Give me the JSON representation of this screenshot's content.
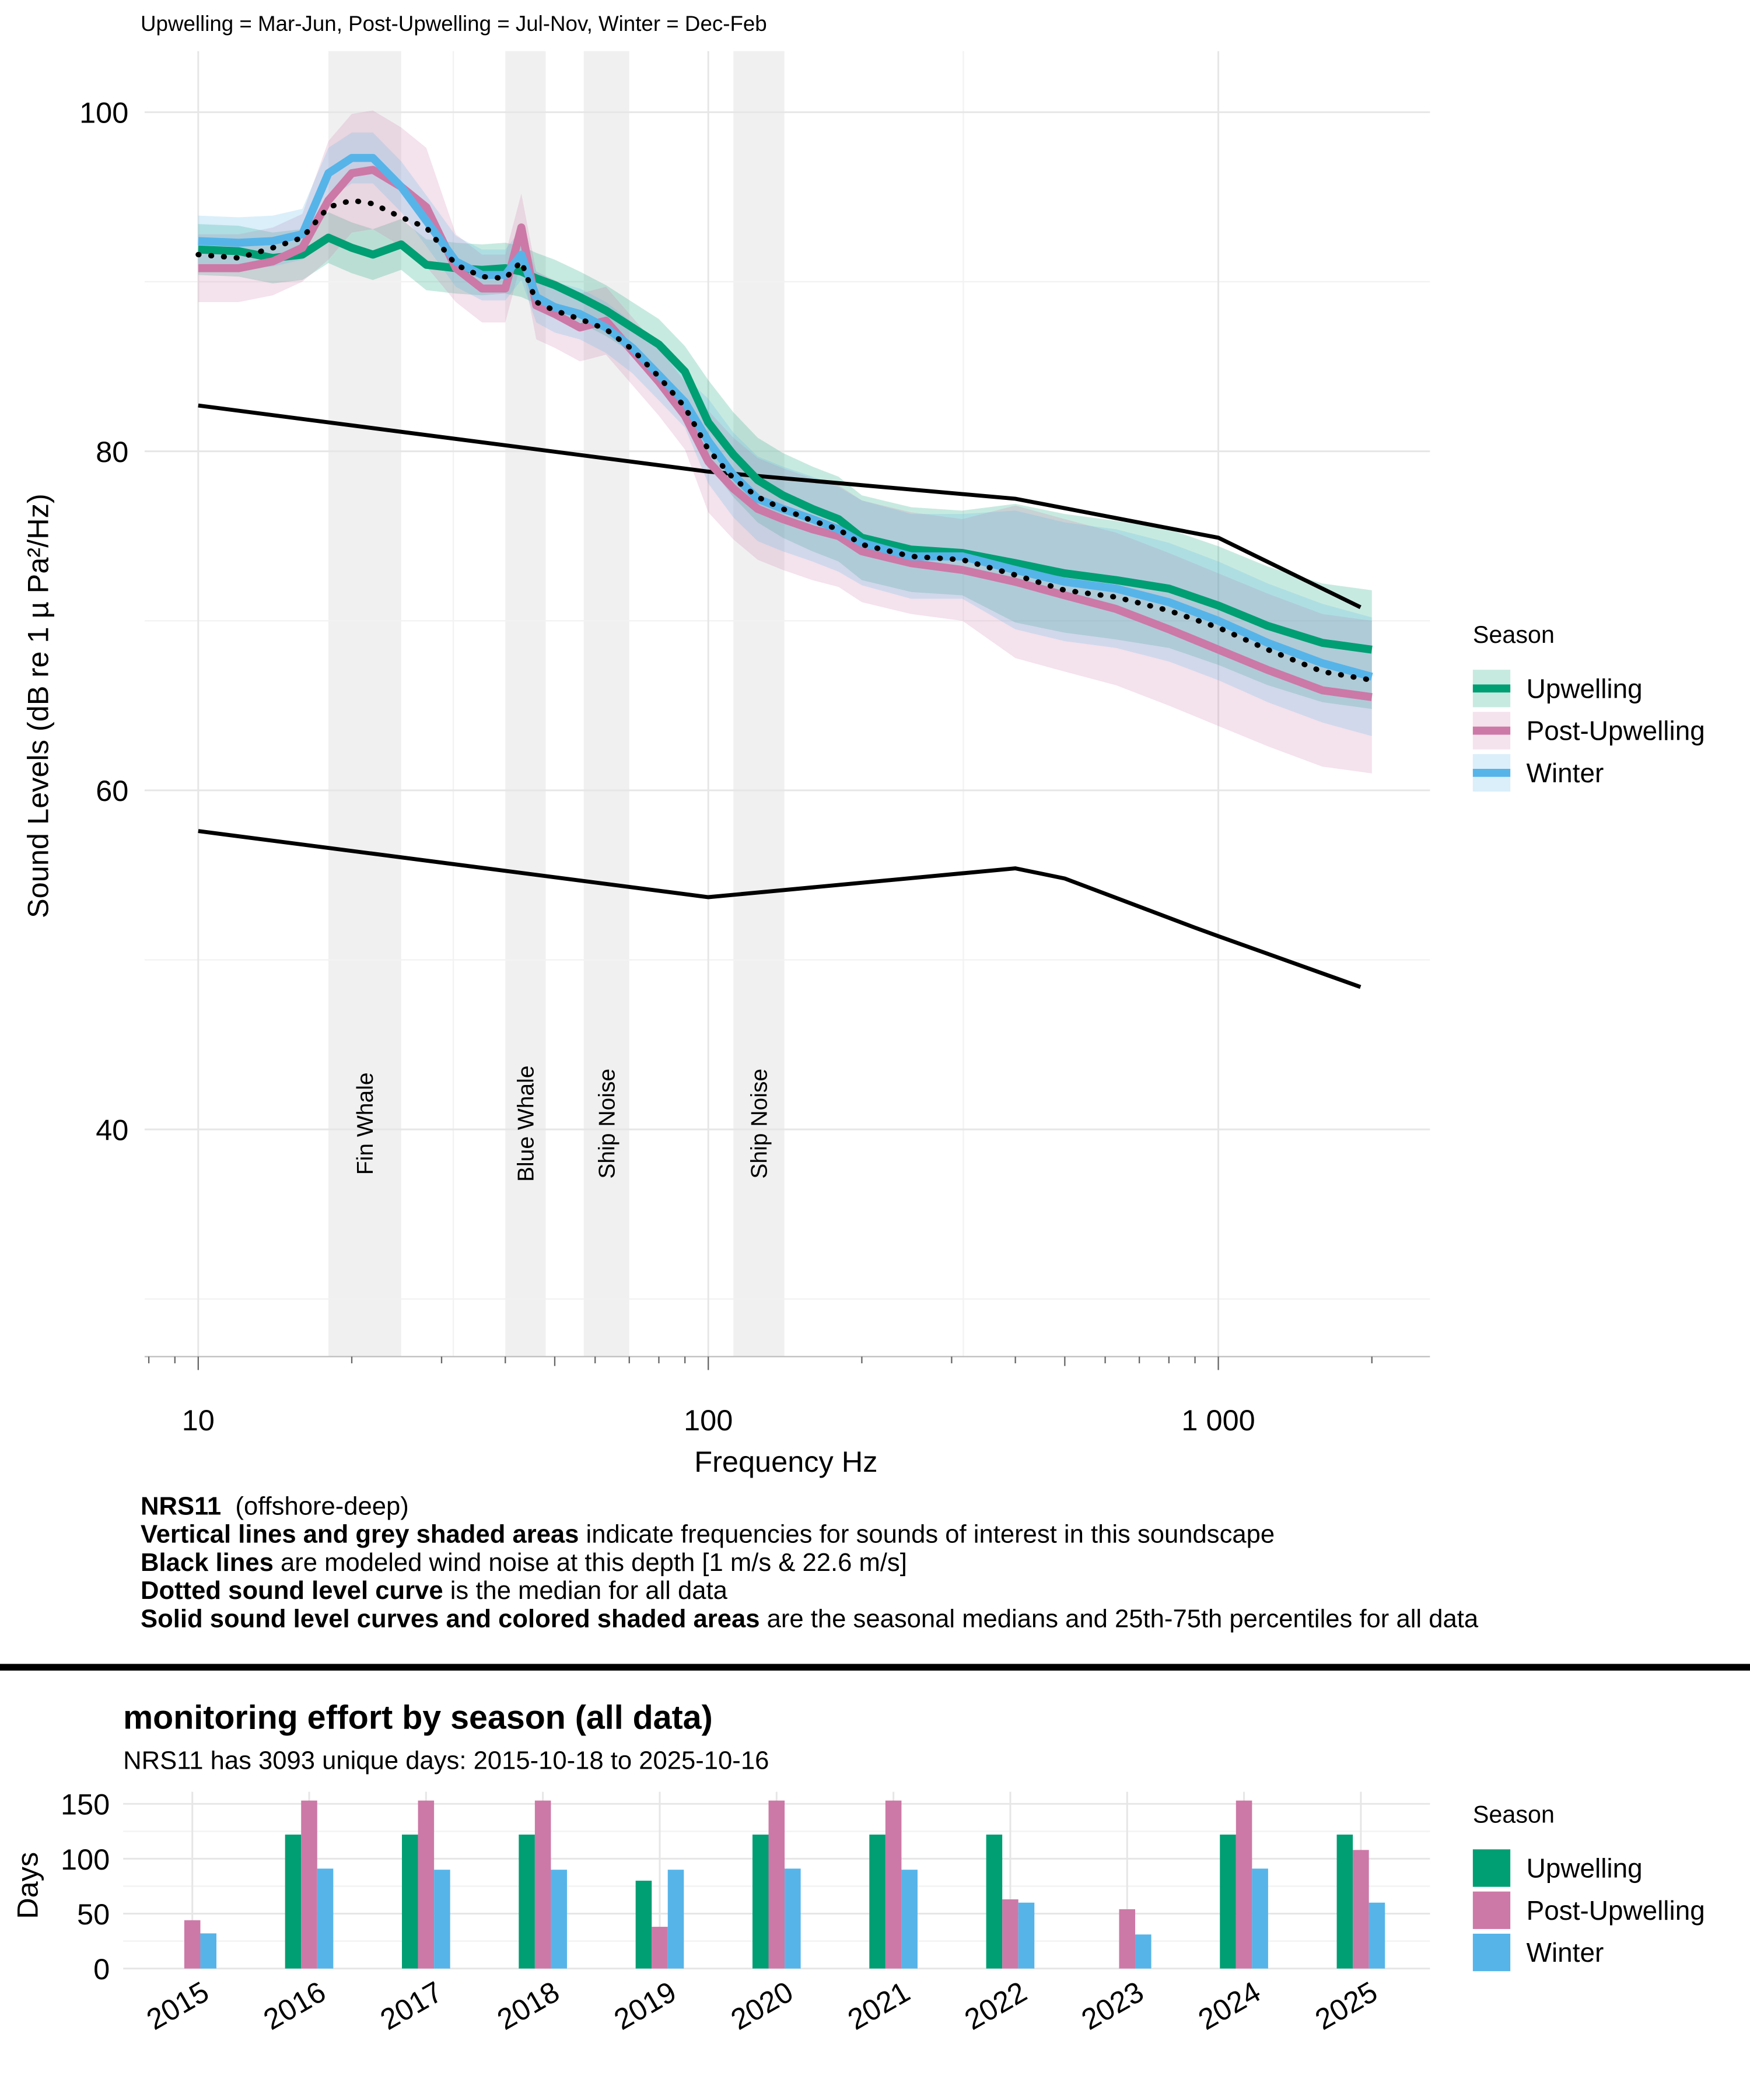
{
  "chart_data": [
    {
      "type": "line",
      "subtitle": "Upwelling = Mar-Jun, Post-Upwelling = Jul-Nov, Winter = Dec-Feb",
      "x_label": "Frequency Hz",
      "y_label": "Sound Levels (dB re 1 µ Pa²/Hz)",
      "log_x": true,
      "xlim": [
        7.85,
        2600
      ],
      "xticks": [
        10,
        100,
        {
          "value": 1000,
          "label": "1 000"
        }
      ],
      "ylim": [
        26.6,
        103.6
      ],
      "yticks": [
        40,
        60,
        80,
        100
      ],
      "grid": true,
      "legend_title": "Season",
      "legend": "right",
      "x": [
        10,
        12,
        14,
        16,
        18,
        20,
        22,
        25,
        28,
        32,
        36,
        40,
        43,
        46,
        50,
        56,
        63,
        71,
        80,
        90,
        100,
        112,
        125,
        140,
        160,
        180,
        200,
        250,
        315,
        400,
        500,
        630,
        800,
        1000,
        1250,
        1600,
        2000
      ],
      "series": [
        {
          "name": "Upwelling",
          "color": "#009E73",
          "values": [
            91.9,
            91.8,
            91.4,
            91.6,
            92.6,
            92.0,
            91.6,
            92.2,
            91.0,
            90.8,
            90.7,
            90.8,
            90.6,
            90.2,
            89.8,
            89.1,
            88.3,
            87.3,
            86.3,
            84.7,
            81.7,
            79.8,
            78.3,
            77.4,
            76.6,
            76.0,
            74.9,
            74.2,
            74.0,
            73.4,
            72.8,
            72.4,
            71.9,
            70.9,
            69.7,
            68.7,
            68.3
          ],
          "upper": [
            93.4,
            93.3,
            92.9,
            93.1,
            94.1,
            93.5,
            93.1,
            93.7,
            92.5,
            92.3,
            92.2,
            92.3,
            92.1,
            91.7,
            91.3,
            90.6,
            89.8,
            88.8,
            87.8,
            86.2,
            84.2,
            82.3,
            80.8,
            79.9,
            79.1,
            78.5,
            77.4,
            76.7,
            76.5,
            76.9,
            76.3,
            75.9,
            75.4,
            74.4,
            73.2,
            72.2,
            71.8
          ],
          "lower": [
            90.4,
            90.3,
            89.9,
            90.1,
            91.1,
            90.5,
            90.1,
            90.7,
            89.5,
            89.3,
            89.2,
            89.3,
            89.1,
            88.7,
            88.3,
            87.6,
            86.8,
            85.8,
            84.8,
            83.2,
            79.2,
            77.3,
            75.8,
            74.9,
            74.1,
            73.5,
            72.4,
            71.7,
            71.5,
            69.9,
            69.3,
            68.9,
            68.4,
            67.4,
            66.2,
            65.2,
            64.8
          ]
        },
        {
          "name": "Post-Upwelling",
          "color": "#CC79A7",
          "values": [
            90.8,
            90.8,
            91.2,
            92.0,
            94.8,
            96.4,
            96.6,
            95.6,
            94.4,
            90.8,
            89.6,
            89.6,
            93.2,
            88.6,
            88.1,
            87.3,
            87.7,
            85.9,
            84.1,
            82.1,
            79.4,
            77.8,
            76.6,
            76.0,
            75.4,
            75.0,
            74.1,
            73.4,
            73.0,
            72.3,
            71.5,
            70.7,
            69.5,
            68.3,
            67.1,
            65.9,
            65.5
          ],
          "upper": [
            92.8,
            92.8,
            93.2,
            94.0,
            98.3,
            99.9,
            100.1,
            99.1,
            97.9,
            92.8,
            91.6,
            91.6,
            95.2,
            90.6,
            90.1,
            89.3,
            89.7,
            87.9,
            86.1,
            84.1,
            82.4,
            80.8,
            79.6,
            79.0,
            78.4,
            78.0,
            77.1,
            76.4,
            76.0,
            76.8,
            76.0,
            75.2,
            74.0,
            72.8,
            71.6,
            70.4,
            70.0
          ],
          "lower": [
            88.8,
            88.8,
            89.2,
            90.0,
            91.3,
            92.9,
            93.1,
            92.1,
            90.9,
            88.8,
            87.6,
            87.6,
            91.2,
            86.6,
            86.1,
            85.3,
            85.7,
            83.9,
            82.1,
            80.1,
            76.4,
            74.8,
            73.6,
            73.0,
            72.4,
            72.0,
            71.1,
            70.4,
            70.0,
            67.8,
            67.0,
            66.2,
            65.0,
            63.8,
            62.6,
            61.4,
            61.0
          ]
        },
        {
          "name": "Winter",
          "color": "#56B4E9",
          "values": [
            92.4,
            92.3,
            92.4,
            92.8,
            96.4,
            97.3,
            97.3,
            95.6,
            93.6,
            91.2,
            90.4,
            90.4,
            91.6,
            89.1,
            88.5,
            88.1,
            87.3,
            86.1,
            84.5,
            82.9,
            80.6,
            78.6,
            77.2,
            76.6,
            76.0,
            75.4,
            74.6,
            73.8,
            73.8,
            73.0,
            72.3,
            71.9,
            71.1,
            70.0,
            68.7,
            67.5,
            66.7
          ],
          "upper": [
            93.9,
            93.8,
            93.9,
            94.3,
            97.9,
            98.8,
            98.8,
            97.1,
            95.1,
            92.7,
            91.9,
            91.9,
            93.1,
            90.6,
            90.0,
            89.6,
            88.8,
            87.6,
            86.0,
            84.4,
            83.1,
            81.1,
            79.7,
            79.1,
            78.5,
            77.9,
            77.1,
            76.3,
            76.3,
            76.5,
            75.8,
            75.4,
            74.6,
            73.5,
            72.2,
            71.0,
            70.2
          ],
          "lower": [
            90.9,
            90.8,
            90.9,
            91.3,
            94.9,
            95.8,
            95.8,
            94.1,
            92.1,
            89.7,
            88.9,
            88.9,
            90.1,
            87.6,
            87.0,
            86.6,
            85.8,
            84.6,
            83.0,
            81.4,
            78.1,
            76.1,
            74.7,
            74.1,
            73.5,
            72.9,
            72.1,
            71.3,
            71.3,
            69.5,
            68.8,
            68.4,
            67.6,
            66.5,
            65.2,
            64.0,
            63.2
          ]
        }
      ],
      "median": {
        "color": "#000000",
        "style": "dotted",
        "values": [
          91.6,
          91.4,
          92.0,
          92.6,
          94.4,
          94.8,
          94.6,
          93.8,
          93.2,
          91.0,
          90.3,
          90.2,
          91.2,
          88.8,
          88.3,
          87.8,
          87.2,
          86.0,
          84.4,
          82.6,
          80.1,
          78.4,
          77.3,
          76.6,
          75.9,
          75.4,
          74.5,
          73.8,
          73.6,
          72.7,
          71.8,
          71.4,
          70.6,
          69.6,
          68.3,
          67.0,
          66.5
        ]
      },
      "wind_lines": [
        {
          "color": "#000000",
          "x": [
            10,
            100,
            400,
            1000,
            1900
          ],
          "values": [
            82.7,
            78.8,
            77.2,
            74.9,
            70.8
          ]
        },
        {
          "color": "#000000",
          "x": [
            10,
            100,
            400,
            500,
            900,
            1000,
            1900
          ],
          "values": [
            57.6,
            53.7,
            55.4,
            54.8,
            51.9,
            51.4,
            48.4
          ]
        }
      ],
      "region_color": "#f0f0f0",
      "regions": [
        {
          "label": "Fin Whale",
          "xmin": 18,
          "xmax": 25
        },
        {
          "label": "Blue Whale",
          "xmin": 40,
          "xmax": 48
        },
        {
          "label": "Ship Noise",
          "xmin": 57,
          "xmax": 70
        },
        {
          "label": "Ship Noise",
          "xmin": 112,
          "xmax": 141
        }
      ],
      "caption": [
        {
          "bold": "NRS11",
          "text": "  (offshore-deep)"
        },
        {
          "bold": "Vertical lines and grey shaded areas",
          "text": " indicate frequencies for sounds of interest in this soundscape"
        },
        {
          "bold": "Black lines",
          "text": " are modeled wind noise at this depth [1 m/s & 22.6 m/s]"
        },
        {
          "bold": "Dotted sound level curve",
          "text": " is the median for all data"
        },
        {
          "bold": "Solid sound level curves and colored shaded areas",
          "text": " are the seasonal medians and 25th-75th percentiles for all data"
        }
      ]
    },
    {
      "type": "bar",
      "title": "monitoring effort by season (all data)",
      "subtitle": "NRS11 has 3093 unique days: 2015-10-18 to 2025-10-16",
      "y_label": "Days",
      "categories": [
        "2015",
        "2016",
        "2017",
        "2018",
        "2019",
        "2020",
        "2021",
        "2022",
        "2023",
        "2024",
        "2025"
      ],
      "series": [
        {
          "name": "Upwelling",
          "color": "#009E73",
          "values": [
            null,
            122,
            122,
            122,
            80,
            122,
            122,
            122,
            null,
            122,
            122
          ]
        },
        {
          "name": "Post-Upwelling",
          "color": "#CC79A7",
          "values": [
            44,
            153,
            153,
            153,
            38,
            153,
            153,
            63,
            54,
            153,
            108
          ]
        },
        {
          "name": "Winter",
          "color": "#56B4E9",
          "values": [
            32,
            91,
            90,
            90,
            90,
            91,
            90,
            60,
            31,
            91,
            60
          ]
        }
      ],
      "ylim": [
        0,
        161
      ],
      "yticks": [
        0,
        50,
        100,
        150
      ],
      "grid": true,
      "legend_title": "Season",
      "legend": "right"
    }
  ]
}
